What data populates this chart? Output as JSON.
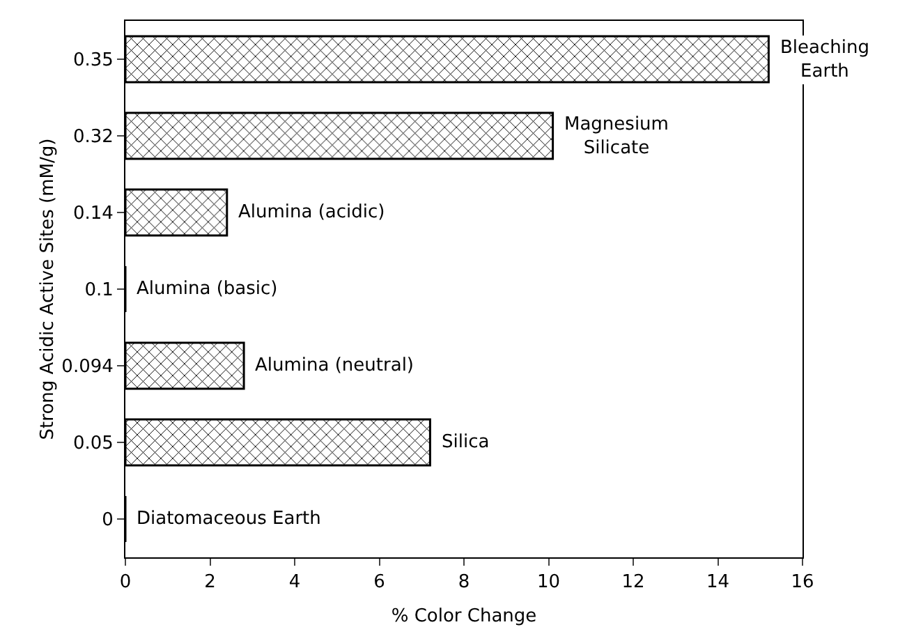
{
  "chart_data": {
    "type": "bar",
    "orientation": "horizontal",
    "categories": [
      "0.35",
      "0.32",
      "0.14",
      "0.1",
      "0.094",
      "0.05",
      "0"
    ],
    "values": [
      15.2,
      10.1,
      2.4,
      0,
      2.8,
      7.2,
      0
    ],
    "color": "#000000",
    "xlabel": "% Color Change",
    "ylabel": "Strong Acidic Active Sites (mM/g)",
    "xlim": [
      0,
      16
    ],
    "xticks": [
      0,
      2,
      4,
      6,
      8,
      10,
      12,
      14,
      16
    ],
    "grid": false,
    "legend": false,
    "annotations": [
      {
        "text": "Bleaching\nEarth",
        "x": 15.2,
        "y": "0.35"
      },
      {
        "text": "Magnesium\nSilicate",
        "x": 10.1,
        "y": "0.32"
      },
      {
        "text": "Alumina (acidic)",
        "x": 2.4,
        "y": "0.14"
      },
      {
        "text": "Alumina (basic)",
        "x": 0,
        "y": "0.1"
      },
      {
        "text": "Alumina (neutral)",
        "x": 2.8,
        "y": "0.094"
      },
      {
        "text": "Silica",
        "x": 7.2,
        "y": "0.05"
      },
      {
        "text": "Diatomaceous Earth",
        "x": 0,
        "y": "0"
      }
    ]
  }
}
